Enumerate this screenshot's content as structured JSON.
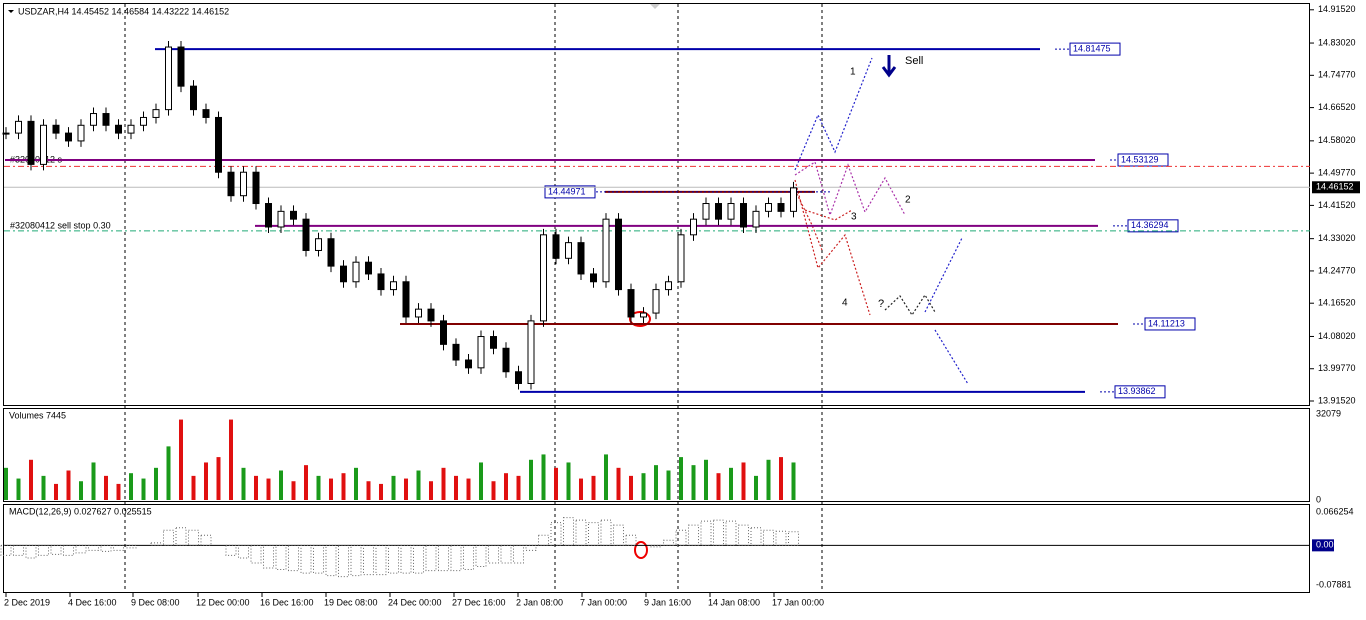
{
  "header": {
    "symbol": "USDZAR,H4 14.45452 14.46584 14.43222 14.46152"
  },
  "chart_data": {
    "type": "candlestick",
    "ylim": [
      13.905,
      14.93
    ],
    "yticks": [
      {
        "value": 14.9152,
        "label": "14.91520"
      },
      {
        "value": 14.8302,
        "label": "14.83020"
      },
      {
        "value": 14.7477,
        "label": "14.74770"
      },
      {
        "value": 14.6652,
        "label": "14.66520"
      },
      {
        "value": 14.5802,
        "label": "14.58020"
      },
      {
        "value": 14.4977,
        "label": "14.49770"
      },
      {
        "value": 14.4152,
        "label": "14.41520"
      },
      {
        "value": 14.3302,
        "label": "14.33020"
      },
      {
        "value": 14.2477,
        "label": "14.24770"
      },
      {
        "value": 14.1652,
        "label": "14.16520"
      },
      {
        "value": 14.0802,
        "label": "14.08020"
      },
      {
        "value": 13.9977,
        "label": "13.99770"
      },
      {
        "value": 13.9152,
        "label": "13.91520"
      }
    ],
    "current_price": 14.46152,
    "x_labels": [
      "2 Dec 2019",
      "4 Dec 16:00",
      "9 Dec 08:00",
      "12 Dec 00:00",
      "16 Dec 16:00",
      "19 Dec 08:00",
      "24 Dec 00:00",
      "27 Dec 16:00",
      "2 Jan 08:00",
      "7 Jan 00:00",
      "9 Jan 16:00",
      "14 Jan 08:00",
      "17 Jan 00:00"
    ],
    "values": [
      14.6,
      14.63,
      14.52,
      14.62,
      14.6,
      14.58,
      14.62,
      14.65,
      14.62,
      14.6,
      14.62,
      14.64,
      14.66,
      14.82,
      14.72,
      14.66,
      14.64,
      14.5,
      14.44,
      14.5,
      14.42,
      14.36,
      14.4,
      14.38,
      14.3,
      14.33,
      14.26,
      14.22,
      14.27,
      14.24,
      14.2,
      14.22,
      14.13,
      14.15,
      14.12,
      14.06,
      14.02,
      14.0,
      14.08,
      14.05,
      13.99,
      13.96,
      14.12,
      14.34,
      14.28,
      14.32,
      14.24,
      14.22,
      14.38,
      14.2,
      14.13,
      14.14,
      14.2,
      14.22,
      14.34,
      14.38,
      14.42,
      14.38,
      14.42,
      14.36,
      14.4,
      14.42,
      14.4,
      14.46
    ],
    "levels": [
      {
        "price": 14.81475,
        "color": "#0000aa"
      },
      {
        "price": 14.53129,
        "color": "#800080"
      },
      {
        "price": 14.44971,
        "color": "#800000"
      },
      {
        "price": 14.36294,
        "color": "#800080"
      },
      {
        "price": 14.11213,
        "color": "#800000"
      },
      {
        "price": 13.93862,
        "color": "#0000aa"
      }
    ],
    "annotations": [
      "#32080412 s",
      "#32080412 sell stop 0.30",
      "Sell",
      "1",
      "2",
      "3",
      "4",
      "?"
    ],
    "volume": {
      "title": "Volumes 7445",
      "ylim": [
        0,
        32079
      ],
      "yticks": [
        32079,
        0
      ],
      "values": [
        12000,
        8000,
        15000,
        9000,
        6000,
        11000,
        7000,
        14000,
        9000,
        6000,
        10000,
        8000,
        12000,
        20000,
        30000,
        9000,
        14000,
        16000,
        30000,
        12000,
        9000,
        8000,
        11000,
        7000,
        13000,
        9000,
        8000,
        10000,
        12000,
        7000,
        6000,
        9000,
        8000,
        11000,
        7000,
        12000,
        9000,
        8000,
        14000,
        7000,
        10000,
        9000,
        15000,
        17000,
        12000,
        14000,
        8000,
        9000,
        17000,
        12000,
        9000,
        10000,
        13000,
        11000,
        16000,
        13000,
        15000,
        10000,
        12000,
        14000,
        9000,
        15000,
        16000,
        14000
      ]
    },
    "macd": {
      "title": "MACD(12,26,9) 0.027627 0.025515",
      "ylim": [
        -0.0925,
        0.08
      ],
      "yticks": [
        {
          "value": 0.066254,
          "label": "0.066254"
        },
        {
          "value": 0,
          "label": "0.00"
        },
        {
          "value": -0.07881,
          "label": "-0.07881"
        }
      ],
      "values": [
        -0.02,
        -0.02,
        -0.025,
        -0.02,
        -0.018,
        -0.02,
        -0.015,
        -0.01,
        -0.012,
        -0.01,
        -0.005,
        0.0,
        0.005,
        0.03,
        0.035,
        0.03,
        0.02,
        0.0,
        -0.02,
        -0.025,
        -0.035,
        -0.045,
        -0.048,
        -0.05,
        -0.055,
        -0.055,
        -0.06,
        -0.062,
        -0.06,
        -0.058,
        -0.058,
        -0.055,
        -0.055,
        -0.055,
        -0.05,
        -0.05,
        -0.05,
        -0.048,
        -0.042,
        -0.035,
        -0.035,
        -0.035,
        -0.01,
        0.02,
        0.045,
        0.055,
        0.05,
        0.045,
        0.05,
        0.04,
        0.02,
        0.0,
        -0.003,
        0.01,
        0.03,
        0.04,
        0.048,
        0.05,
        0.048,
        0.04,
        0.035,
        0.03,
        0.028,
        0.027
      ]
    }
  }
}
